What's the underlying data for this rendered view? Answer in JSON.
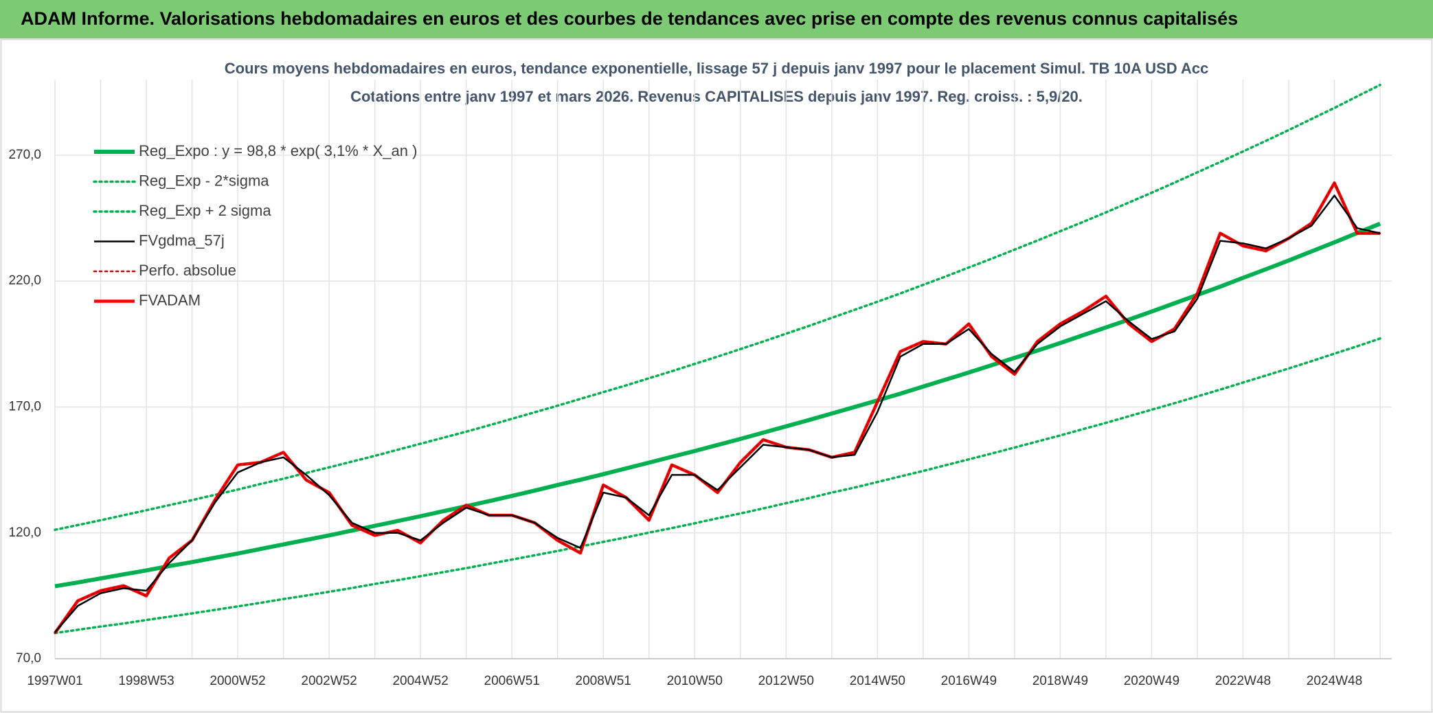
{
  "chart_data": {
    "type": "line",
    "title": "ADAM Informe. Valorisations hebdomadaires en euros et des courbes de tendances avec prise en compte des revenus connus capitalisés",
    "subtitle": [
      "Cours moyens hebdomadaires en euros, tendance exponentielle, lissage 57 j depuis janv 1997 pour le placement Simul. TB 10A USD Acc",
      "Cotations entre janv 1997 et mars 2026. Revenus CAPITALISES depuis janv 1997. Reg. croiss. : 5,9/20."
    ],
    "categories": [
      "1997W01",
      null,
      null,
      null,
      "1998W53",
      null,
      null,
      null,
      "2000W52",
      null,
      null,
      null,
      "2002W52",
      null,
      null,
      null,
      "2004W52",
      null,
      null,
      null,
      "2006W51",
      null,
      null,
      null,
      "2008W51",
      null,
      null,
      null,
      "2010W50",
      null,
      null,
      null,
      "2012W50",
      null,
      null,
      null,
      "2014W50",
      null,
      null,
      null,
      "2016W49",
      null,
      null,
      null,
      "2018W49",
      null,
      null,
      null,
      "2020W49",
      null,
      null,
      null,
      "2022W48",
      null,
      null,
      null,
      "2024W48",
      null,
      null
    ],
    "ylim": [
      70,
      300
    ],
    "yticks": [
      {
        "value": 70,
        "label": "70,0"
      },
      {
        "value": 120,
        "label": "120,0"
      },
      {
        "value": 170,
        "label": "170,0"
      },
      {
        "value": 220,
        "label": "220,0"
      },
      {
        "value": 270,
        "label": "270,0"
      }
    ],
    "grid": true,
    "legend": "upper left",
    "series": [
      {
        "name": "Reg_Expo : y = 98,8 * exp( 3,1% *  X_an )",
        "color": "#00b050",
        "line_style": "solid",
        "values": [
          98.8,
          100.3,
          101.9,
          103.5,
          105.1,
          106.8,
          108.4,
          110.1,
          111.8,
          113.6,
          115.4,
          117.2,
          119.0,
          120.9,
          122.8,
          124.7,
          126.6,
          128.6,
          130.6,
          132.6,
          134.7,
          136.8,
          139.0,
          141.1,
          143.3,
          145.6,
          147.9,
          150.2,
          152.5,
          154.9,
          157.3,
          159.8,
          162.3,
          164.8,
          167.4,
          170.0,
          172.6,
          175.3,
          178.1,
          180.9,
          183.7,
          186.6,
          189.5,
          192.4,
          195.4,
          198.5,
          201.6,
          204.7,
          207.9,
          211.2,
          214.5,
          217.8,
          221.3,
          224.7,
          228.2,
          231.8,
          235.4,
          239.1,
          242.8
        ]
      },
      {
        "name": "Reg_Exp - 2*sigma",
        "color": "#00b050",
        "line_style": "dotted",
        "values": [
          80.2,
          81.5,
          82.8,
          84.0,
          85.4,
          86.7,
          88.0,
          89.4,
          90.8,
          92.2,
          93.7,
          95.1,
          96.6,
          98.1,
          99.7,
          101.2,
          102.8,
          104.4,
          106.0,
          107.7,
          109.4,
          111.1,
          112.8,
          114.6,
          116.4,
          118.2,
          120.1,
          121.9,
          123.8,
          125.8,
          127.7,
          129.7,
          131.8,
          133.8,
          136.0,
          138.0,
          140.2,
          142.4,
          144.6,
          146.9,
          149.2,
          151.5,
          153.9,
          156.3,
          158.7,
          161.2,
          163.7,
          166.3,
          168.9,
          171.5,
          174.2,
          176.9,
          179.7,
          182.5,
          185.3,
          188.2,
          191.2,
          194.1,
          197.2
        ]
      },
      {
        "name": "Reg_Exp + 2 sigma",
        "color": "#00b050",
        "line_style": "dotted",
        "values": [
          121.2,
          123.1,
          125.0,
          127.0,
          129.0,
          131.0,
          133.0,
          135.1,
          137.2,
          139.4,
          141.5,
          143.8,
          146.0,
          148.3,
          150.6,
          153.0,
          155.4,
          157.8,
          160.2,
          162.7,
          165.3,
          167.9,
          170.5,
          173.2,
          175.9,
          178.6,
          181.4,
          184.2,
          187.1,
          190.0,
          193.0,
          196.0,
          199.1,
          202.2,
          205.4,
          208.6,
          211.8,
          215.1,
          218.5,
          221.9,
          225.4,
          228.9,
          232.5,
          236.1,
          239.8,
          243.5,
          247.3,
          251.2,
          255.1,
          259.1,
          263.2,
          267.3,
          271.5,
          275.7,
          280.0,
          284.4,
          288.8,
          293.4,
          297.9
        ]
      },
      {
        "name": "FVgdma_57j",
        "color": "#000000",
        "line_style": "solid",
        "values": [
          80.5,
          91,
          96,
          98,
          97,
          108,
          117,
          132,
          144,
          148,
          150,
          143,
          135,
          124,
          120,
          120,
          117,
          124,
          130,
          127,
          127,
          124,
          118,
          114,
          136,
          134,
          127,
          143,
          143,
          137,
          146,
          155,
          154,
          153,
          150,
          151,
          168,
          190,
          195,
          195,
          201,
          191,
          184,
          195,
          202,
          207,
          212,
          204,
          197,
          200,
          213,
          236,
          235,
          233,
          237,
          242,
          254,
          241,
          239
        ]
      },
      {
        "name": "Perfo. absolue",
        "color": "#c00000",
        "line_style": "dotted",
        "values": [
          80.2,
          93,
          97,
          99,
          95,
          110,
          117,
          133,
          147,
          148,
          152,
          141,
          136,
          123,
          119,
          121,
          116,
          125,
          131,
          127,
          127,
          124,
          117,
          112,
          139,
          134,
          125,
          147,
          143,
          136,
          148,
          157,
          154,
          153,
          150,
          152,
          172,
          192,
          196,
          195,
          203,
          190,
          183,
          196,
          203,
          208,
          214,
          203,
          196,
          201,
          215,
          239,
          234,
          232,
          237,
          243,
          259,
          239,
          239
        ]
      },
      {
        "name": "FVADAM",
        "color": "#ff0000",
        "line_style": "solid",
        "values": [
          80.2,
          93,
          97,
          99,
          95,
          110,
          117,
          133,
          147,
          148,
          152,
          141,
          136,
          123,
          119,
          121,
          116,
          125,
          131,
          127,
          127,
          124,
          117,
          112,
          139,
          134,
          125,
          147,
          143,
          136,
          148,
          157,
          154,
          153,
          150,
          152,
          172,
          192,
          196,
          195,
          203,
          190,
          183,
          196,
          203,
          208,
          214,
          203,
          196,
          201,
          215,
          239,
          234,
          232,
          237,
          243,
          259,
          239,
          239
        ]
      }
    ]
  }
}
